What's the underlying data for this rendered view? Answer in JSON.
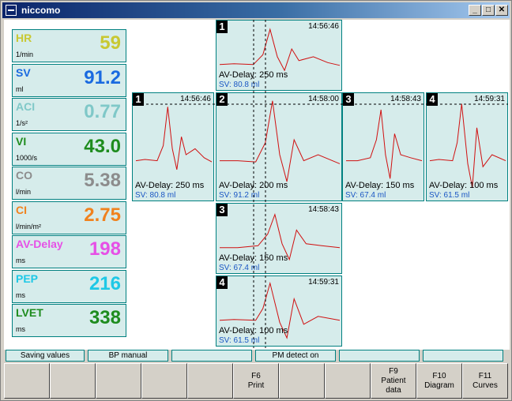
{
  "window": {
    "title": "niccomo"
  },
  "params": [
    {
      "name": "HR",
      "unit": "1/min",
      "value": "59",
      "color": "#c8c832"
    },
    {
      "name": "SV",
      "unit": "ml",
      "value": "91.2",
      "color": "#1a6ae0"
    },
    {
      "name": "ACI",
      "unit": "1/s²",
      "value": "0.77",
      "color": "#7fc8c8"
    },
    {
      "name": "VI",
      "unit": "1000/s",
      "value": "43.0",
      "color": "#1e8c1e"
    },
    {
      "name": "CO",
      "unit": "l/min",
      "value": "5.38",
      "color": "#8c8c8c"
    },
    {
      "name": "CI",
      "unit": "l/min/m²",
      "value": "2.75",
      "color": "#f0821e"
    },
    {
      "name": "AV-Delay",
      "unit": "ms",
      "value": "198",
      "color": "#e650e6"
    },
    {
      "name": "PEP",
      "unit": "ms",
      "value": "216",
      "color": "#1ec8e6"
    },
    {
      "name": "LVET",
      "unit": "ms",
      "value": "338",
      "color": "#1e8c1e"
    }
  ],
  "panels": {
    "top": {
      "num": "1",
      "time": "14:56:46",
      "av": "AV-Delay: 250 ms",
      "sv": "SV: 80.8 ml"
    },
    "row": [
      {
        "num": "1",
        "time": "14:56:46",
        "av": "AV-Delay: 250 ms",
        "sv": "SV: 80.8 ml"
      },
      {
        "num": "2",
        "time": "14:58:00",
        "av": "AV-Delay: 200 ms",
        "sv": "SV: 91.2 ml"
      },
      {
        "num": "3",
        "time": "14:58:43",
        "av": "AV-Delay: 150 ms",
        "sv": "SV: 67.4 ml"
      },
      {
        "num": "4",
        "time": "14:59:31",
        "av": "AV-Delay: 100 ms",
        "sv": "SV: 61.5 ml"
      }
    ],
    "lower": [
      {
        "num": "3",
        "time": "14:58:43",
        "av": "AV-Delay: 150 ms",
        "sv": "SV: 67.4 ml"
      },
      {
        "num": "4",
        "time": "14:59:31",
        "av": "AV-Delay: 100 ms",
        "sv": "SV: 61.5 ml"
      }
    ]
  },
  "status": [
    "Saving values",
    "BP manual",
    "",
    "PM detect on",
    "",
    ""
  ],
  "fkeys": [
    "",
    "",
    "",
    "",
    "",
    "F6\nPrint",
    "",
    "",
    "F9\nPatient\ndata",
    "F10\nDiagram",
    "F11\nCurves"
  ]
}
